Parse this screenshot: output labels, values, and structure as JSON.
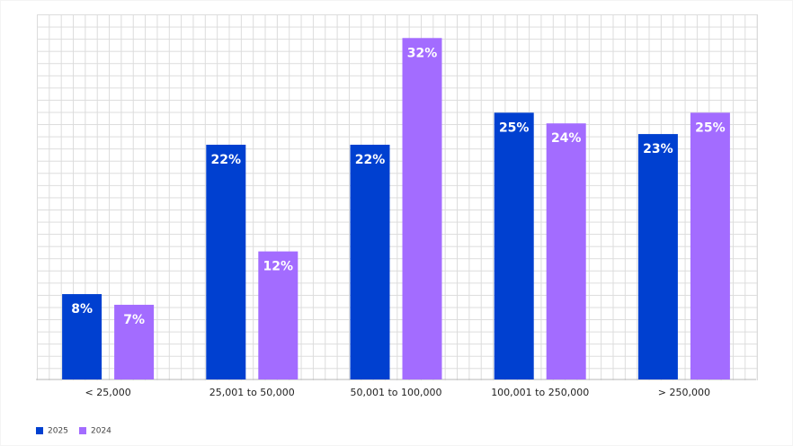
{
  "chart_data": {
    "type": "bar",
    "categories": [
      "< 25,000",
      "25,001 to 50,000",
      "50,001 to 100,000",
      "100,001 to 250,000",
      "> 250,000"
    ],
    "series": [
      {
        "name": "2025",
        "color": "#0040d0",
        "values": [
          8,
          22,
          22,
          25,
          23
        ],
        "value_labels": [
          "8%",
          "22%",
          "22%",
          "25%",
          "23%"
        ]
      },
      {
        "name": "2024",
        "color": "#a36cff",
        "values": [
          7,
          12,
          32,
          24,
          25
        ],
        "value_labels": [
          "7%",
          "12%",
          "32%",
          "24%",
          "25%"
        ]
      }
    ],
    "ylim": [
      0,
      34.3
    ],
    "legend": "bottom-left"
  }
}
